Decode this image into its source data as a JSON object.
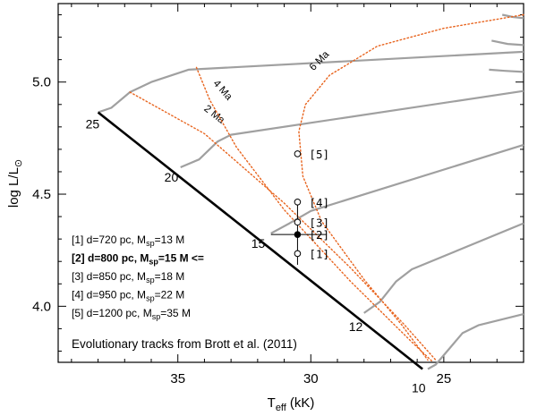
{
  "chart_data": {
    "type": "line",
    "xlabel_main": "T",
    "xlabel_sub": "eff",
    "xlabel_unit": "(kK)",
    "ylabel_main": "log L/L",
    "ylabel_sun": "⊙",
    "xlim": [
      39.5,
      22.0
    ],
    "ylim": [
      3.75,
      5.35
    ],
    "x_reversed": true,
    "xticks": [
      35,
      30,
      25
    ],
    "xtick_labels": [
      "35",
      "30",
      "25"
    ],
    "yticks": [
      4.0,
      4.5,
      5.0
    ],
    "ytick_labels": [
      "4.0",
      "4.5",
      "5.0"
    ],
    "zams": [
      [
        38.0,
        4.865
      ],
      [
        25.8,
        3.72
      ]
    ],
    "tracks": [
      {
        "mass_label": "25",
        "points": [
          [
            38.0,
            4.865
          ],
          [
            37.5,
            4.885
          ],
          [
            36.8,
            4.955
          ],
          [
            36.0,
            5.0
          ],
          [
            34.6,
            5.055
          ],
          [
            22.0,
            5.135
          ]
        ]
      },
      {
        "mass_label": "20",
        "points": [
          [
            34.9,
            4.62
          ],
          [
            34.2,
            4.655
          ],
          [
            33.5,
            4.735
          ],
          [
            33.0,
            4.765
          ],
          [
            22.0,
            4.96
          ]
        ]
      },
      {
        "mass_label": "15",
        "points": [
          [
            31.5,
            4.325
          ],
          [
            30.8,
            4.37
          ],
          [
            30.0,
            4.425
          ],
          [
            22.0,
            4.72
          ]
        ]
      },
      {
        "mass_label": "12",
        "points": [
          [
            28.0,
            3.97
          ],
          [
            27.4,
            4.02
          ],
          [
            26.8,
            4.11
          ],
          [
            26.2,
            4.165
          ],
          [
            22.0,
            4.37
          ]
        ]
      },
      {
        "mass_label": "10",
        "points": [
          [
            25.6,
            3.72
          ],
          [
            25.3,
            3.74
          ],
          [
            24.8,
            3.81
          ],
          [
            24.3,
            3.88
          ],
          [
            23.7,
            3.915
          ],
          [
            22.0,
            3.965
          ]
        ]
      }
    ],
    "extra_tracks": [
      [
        [
          22.8,
          5.3
        ],
        [
          22.4,
          5.29
        ],
        [
          22.0,
          5.285
        ]
      ],
      [
        [
          23.2,
          5.185
        ],
        [
          22.6,
          5.17
        ],
        [
          22.0,
          5.165
        ]
      ],
      [
        [
          23.3,
          5.055
        ],
        [
          22.7,
          5.05
        ],
        [
          22.0,
          5.045
        ]
      ]
    ],
    "isochrones": [
      {
        "label": "2 Ma",
        "label_at": [
          33.7,
          4.845
        ],
        "label_angle": 38,
        "points": [
          [
            36.8,
            4.955
          ],
          [
            34.0,
            4.77
          ],
          [
            31.0,
            4.46
          ],
          [
            28.5,
            4.17
          ],
          [
            26.5,
            3.92
          ],
          [
            25.3,
            3.76
          ]
        ]
      },
      {
        "label": "4 Ma",
        "label_at": [
          33.4,
          4.955
        ],
        "label_angle": 48,
        "points": [
          [
            34.3,
            5.065
          ],
          [
            33.8,
            4.92
          ],
          [
            32.8,
            4.71
          ],
          [
            31.0,
            4.43
          ],
          [
            28.5,
            4.11
          ],
          [
            26.2,
            3.84
          ],
          [
            25.4,
            3.75
          ]
        ]
      },
      {
        "label": "6 Ma",
        "label_at": [
          29.6,
          5.085
        ],
        "label_angle": -45,
        "points": [
          [
            22.0,
            5.3
          ],
          [
            25.0,
            5.24
          ],
          [
            27.5,
            5.16
          ],
          [
            29.3,
            5.03
          ],
          [
            30.2,
            4.9
          ],
          [
            30.45,
            4.78
          ],
          [
            30.3,
            4.58
          ],
          [
            29.6,
            4.38
          ],
          [
            28.0,
            4.12
          ],
          [
            26.6,
            3.92
          ],
          [
            25.6,
            3.76
          ]
        ]
      }
    ],
    "star": {
      "x": 30.5,
      "y": 4.32,
      "xerr": [
        31.5,
        29.4
      ],
      "yerr": [
        4.185,
        4.46
      ]
    },
    "distance_points": [
      {
        "label": "[1]",
        "x": 30.5,
        "y": 4.235
      },
      {
        "label": "[2]",
        "x": 30.5,
        "y": 4.32
      },
      {
        "label": "[3]",
        "x": 30.5,
        "y": 4.375
      },
      {
        "label": "[4]",
        "x": 30.5,
        "y": 4.465
      },
      {
        "label": "[5]",
        "x": 30.5,
        "y": 4.68
      }
    ],
    "legend": [
      {
        "prefix": "[1] d=720 pc, M",
        "sub": "sp",
        "suffix": "=13 M",
        "bold": false
      },
      {
        "prefix": "[2] d=800 pc, M",
        "sub": "sp",
        "suffix": "=15 M <=",
        "bold": true
      },
      {
        "prefix": "[3] d=850 pc, M",
        "sub": "sp",
        "suffix": "=18 M",
        "bold": false
      },
      {
        "prefix": "[4] d=950 pc, M",
        "sub": "sp",
        "suffix": "=22 M",
        "bold": false
      },
      {
        "prefix": "[5] d=1200 pc, M",
        "sub": "sp",
        "suffix": "=35 M",
        "bold": false
      }
    ],
    "note": "Evolutionary tracks from Brott et al. (2011)",
    "colors": {
      "track": "#a0a0a0",
      "isochrone": "#e8641e",
      "zams": "#000000",
      "axes": "#000000"
    }
  }
}
